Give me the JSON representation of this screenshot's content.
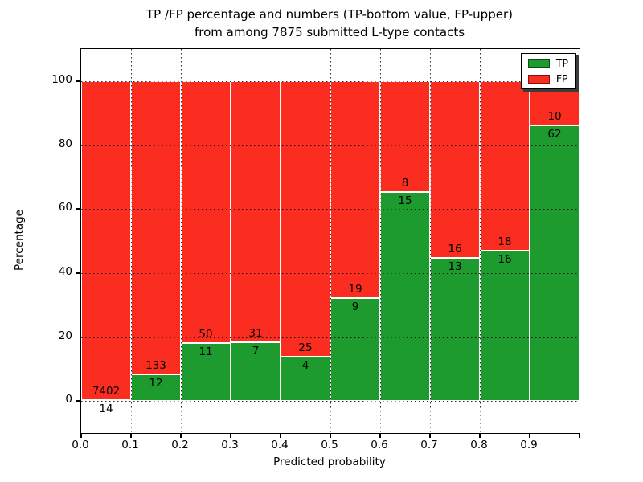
{
  "chart_data": {
    "type": "bar",
    "stacked": true,
    "title_line1": "TP /FP percentage and numbers (TP-bottom value, FP-upper)",
    "title_line2": "from among 7875 submitted L-type contacts",
    "total_submitted": 7875,
    "xlabel": "Predicted probability",
    "ylabel": "Percentage",
    "xlim": [
      0.0,
      1.0
    ],
    "ylim": [
      -10,
      110
    ],
    "grid": true,
    "grid_style": "dotted",
    "xtick_labels": [
      "0.0",
      "0.1",
      "0.2",
      "0.3",
      "0.4",
      "0.5",
      "0.6",
      "0.7",
      "0.8",
      "0.9"
    ],
    "ytick_values": [
      0,
      20,
      40,
      60,
      80,
      100
    ],
    "ytick_minor_values": [
      10,
      30,
      50,
      70,
      90
    ],
    "legend": {
      "position": "upper right",
      "entries": [
        {
          "label": "TP",
          "color": "#1e9b2e"
        },
        {
          "label": "FP",
          "color": "#fa2d20"
        }
      ]
    },
    "colors": {
      "tp": "#1e9b2e",
      "fp": "#fa2d20",
      "bar_edge": "#ffffff",
      "text": "#000000"
    },
    "bins": [
      {
        "range": [
          0.0,
          0.1
        ],
        "tp": 14,
        "fp": 7402
      },
      {
        "range": [
          0.1,
          0.2
        ],
        "tp": 12,
        "fp": 133
      },
      {
        "range": [
          0.2,
          0.3
        ],
        "tp": 11,
        "fp": 50
      },
      {
        "range": [
          0.3,
          0.4
        ],
        "tp": 7,
        "fp": 31
      },
      {
        "range": [
          0.4,
          0.5
        ],
        "tp": 4,
        "fp": 25
      },
      {
        "range": [
          0.5,
          0.6
        ],
        "tp": 9,
        "fp": 19
      },
      {
        "range": [
          0.6,
          0.7
        ],
        "tp": 15,
        "fp": 8
      },
      {
        "range": [
          0.7,
          0.8
        ],
        "tp": 13,
        "fp": 16
      },
      {
        "range": [
          0.8,
          0.9
        ],
        "tp": 16,
        "fp": 18
      },
      {
        "range": [
          0.9,
          1.0
        ],
        "tp": 62,
        "fp": 10
      }
    ]
  }
}
